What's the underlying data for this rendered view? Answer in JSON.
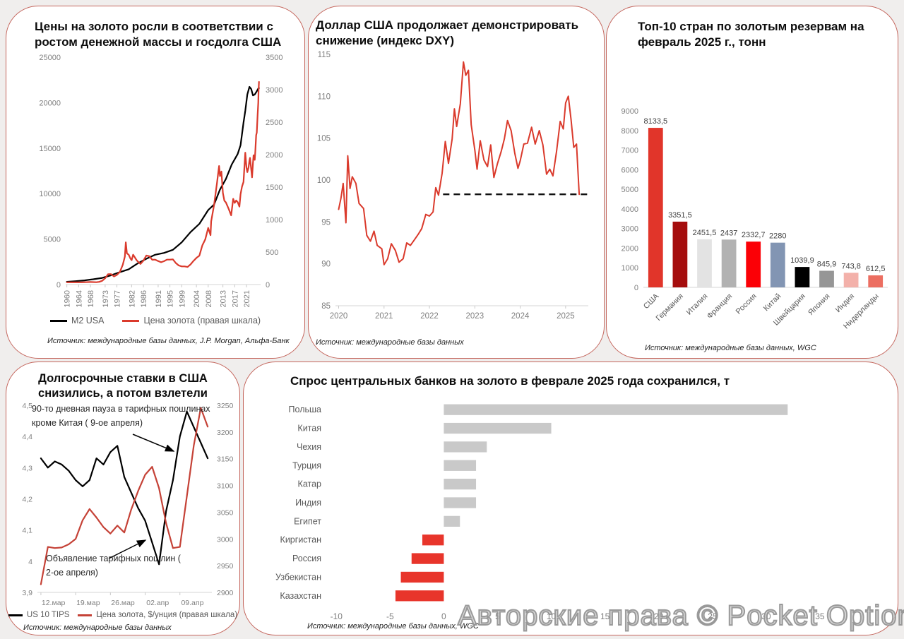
{
  "page": {
    "watermark": "Авторские права © Pocket Option"
  },
  "chart_data": [
    {
      "type": "line",
      "title": "Цены на золото росли в соответствии с ростом денежной массы и госдолга США",
      "source": "Источник: международные базы данных, J.P. Morgan, Альфа-Банк",
      "xlim": [
        1959.6,
        2025.8
      ],
      "x_ticks": [
        1960,
        1964,
        1968,
        1973,
        1977,
        1982,
        1986,
        1991,
        1995,
        1999,
        2004,
        2008,
        2013,
        2017,
        2021
      ],
      "x_tick_labels": [
        "1960",
        "1964",
        "1968",
        "1973",
        "1977",
        "1982",
        "1986",
        "1991",
        "1995",
        "1999",
        "2004",
        "2008",
        "2013",
        "2017",
        "2021"
      ],
      "left_axis": {
        "min": 0,
        "max": 25000,
        "step": 5000
      },
      "right_axis": {
        "min": 0,
        "max": 3500,
        "step": 500
      },
      "legend_position": "bottom",
      "series": [
        {
          "name": "M2 USA",
          "color": "#000000",
          "axis": "left",
          "x": [
            1960,
            1963,
            1966,
            1969,
            1972,
            1975,
            1978,
            1981,
            1984,
            1987,
            1990,
            1993,
            1996,
            1999,
            2002,
            2005,
            2008,
            2010,
            2012,
            2014,
            2016,
            2018,
            2019,
            2020,
            2020.6,
            2021.3,
            2022,
            2022.6,
            2023.2,
            2023.8,
            2024.4,
            2025,
            2025.25
          ],
          "y": [
            300,
            370,
            460,
            580,
            730,
            1020,
            1370,
            1680,
            2310,
            2830,
            3280,
            3480,
            3820,
            4640,
            5770,
            6680,
            8190,
            8800,
            10450,
            11600,
            13200,
            14350,
            15320,
            17800,
            19100,
            20900,
            21740,
            21500,
            20800,
            20900,
            21200,
            21550,
            21600
          ]
        },
        {
          "name": "Цена золота (правая шкала)",
          "color": "#da3a2c",
          "axis": "right",
          "x": [
            1960,
            1965,
            1968,
            1970,
            1971,
            1972,
            1973,
            1974,
            1975,
            1976,
            1977,
            1978,
            1979,
            1979.7,
            1980,
            1980.4,
            1981,
            1981.6,
            1982,
            1982.5,
            1983,
            1983.6,
            1984,
            1985,
            1986,
            1987,
            1988,
            1989,
            1990,
            1991,
            1992,
            1993,
            1994,
            1995,
            1996,
            1997,
            1998,
            1999,
            2000,
            2001,
            2002,
            2003,
            2004,
            2005,
            2006,
            2007,
            2008,
            2008.8,
            2009,
            2010,
            2011,
            2011.7,
            2012,
            2012.5,
            2013,
            2013.5,
            2014,
            2015,
            2015.8,
            2016.5,
            2017,
            2017.5,
            2018,
            2018.6,
            2019,
            2019.5,
            2020,
            2020.6,
            2021,
            2021.3,
            2021.7,
            2022,
            2022.2,
            2022.7,
            2022.9,
            2023.2,
            2023.4,
            2023.8,
            2024,
            2024.3,
            2024.5,
            2024.8,
            2025,
            2025.1,
            2025.25
          ],
          "y": [
            35,
            35,
            39,
            36,
            41,
            58,
            97,
            159,
            161,
            125,
            148,
            193,
            306,
            430,
            650,
            480,
            460,
            400,
            376,
            460,
            424,
            380,
            360,
            317,
            368,
            447,
            437,
            381,
            384,
            362,
            344,
            360,
            384,
            384,
            388,
            331,
            294,
            279,
            279,
            271,
            310,
            363,
            410,
            445,
            603,
            695,
            872,
            760,
            972,
            1225,
            1570,
            1825,
            1670,
            1740,
            1410,
            1290,
            1265,
            1160,
            1065,
            1320,
            1257,
            1295,
            1270,
            1200,
            1390,
            1510,
            1580,
            2030,
            1800,
            1730,
            1800,
            1910,
            1950,
            1730,
            1650,
            1870,
            1990,
            1920,
            2050,
            2300,
            2340,
            2620,
            2800,
            2980,
            3120
          ]
        }
      ]
    },
    {
      "type": "line",
      "title": "Доллар США продолжает демонстрировать снижение (индекс DXY)",
      "source": "Источник: международные базы данных",
      "xlim": [
        2019.93,
        2025.5
      ],
      "x_ticks": [
        2020,
        2021,
        2022,
        2023,
        2024,
        2025
      ],
      "x_tick_labels": [
        "2020",
        "2021",
        "2022",
        "2023",
        "2024",
        "2025"
      ],
      "left_axis": {
        "min": 85,
        "max": 115,
        "step": 5
      },
      "dashed_line": {
        "y": 98.3,
        "x1": 2022.3,
        "x2": 2025.48,
        "color": "#111111"
      },
      "series": [
        {
          "name": "DXY",
          "color": "#da3a2c",
          "axis": "left",
          "x": [
            2020.0,
            2020.05,
            2020.1,
            2020.16,
            2020.2,
            2020.25,
            2020.3,
            2020.38,
            2020.45,
            2020.55,
            2020.62,
            2020.7,
            2020.78,
            2020.85,
            2020.95,
            2021.0,
            2021.08,
            2021.16,
            2021.25,
            2021.33,
            2021.42,
            2021.5,
            2021.58,
            2021.66,
            2021.75,
            2021.83,
            2021.92,
            2022.0,
            2022.08,
            2022.14,
            2022.2,
            2022.28,
            2022.35,
            2022.42,
            2022.5,
            2022.55,
            2022.6,
            2022.68,
            2022.75,
            2022.8,
            2022.86,
            2022.92,
            2023.0,
            2023.05,
            2023.12,
            2023.2,
            2023.28,
            2023.35,
            2023.42,
            2023.5,
            2023.58,
            2023.65,
            2023.72,
            2023.8,
            2023.88,
            2023.95,
            2024.0,
            2024.08,
            2024.16,
            2024.25,
            2024.33,
            2024.42,
            2024.5,
            2024.58,
            2024.65,
            2024.72,
            2024.8,
            2024.88,
            2024.95,
            2025.0,
            2025.06,
            2025.12,
            2025.18,
            2025.24,
            2025.3
          ],
          "y": [
            96.5,
            97.8,
            99.6,
            94.9,
            102.9,
            99.0,
            100.4,
            99.6,
            97.2,
            96.6,
            93.4,
            92.7,
            93.9,
            92.2,
            91.8,
            89.9,
            90.6,
            92.4,
            91.6,
            90.2,
            90.6,
            92.5,
            92.2,
            92.8,
            93.5,
            94.2,
            95.9,
            95.7,
            96.2,
            99.1,
            98.2,
            100.8,
            104.6,
            102.0,
            104.9,
            108.5,
            106.4,
            109.1,
            114.1,
            112.5,
            113.1,
            106.6,
            103.6,
            101.3,
            104.7,
            102.4,
            101.6,
            104.2,
            100.3,
            102.0,
            103.4,
            104.9,
            107.1,
            105.9,
            103.2,
            101.4,
            102.3,
            104.3,
            104.4,
            106.3,
            104.3,
            105.9,
            104.2,
            100.7,
            101.3,
            100.5,
            103.4,
            107.0,
            106.1,
            109.2,
            110.0,
            107.2,
            103.9,
            104.3,
            98.3
          ]
        }
      ]
    },
    {
      "type": "bar",
      "title": "Топ-10 стран по золотым резервам на февраль 2025 г., тонн",
      "source": "Источник: международные базы данных, WGC",
      "categories": [
        "США",
        "Германия",
        "Италия",
        "Франция",
        "Россия",
        "Китай",
        "Швейцария",
        "Япония",
        "Индия",
        "Нидерланды"
      ],
      "values": [
        8133.5,
        3351.5,
        2451.5,
        2437,
        2332.7,
        2280,
        1039.9,
        845.9,
        743.8,
        612.5
      ],
      "value_labels": [
        "8133,5",
        "3351,5",
        "2451,5",
        "2437",
        "2332,7",
        "2280",
        "1039,9",
        "845,9",
        "743,8",
        "612,5"
      ],
      "colors": [
        "#e1352a",
        "#a50d0d",
        "#e3e3e3",
        "#b2b2b2",
        "#fb0006",
        "#8295b3",
        "#000000",
        "#969696",
        "#f3b1aa",
        "#ec6e61"
      ],
      "left_axis": {
        "min": 0,
        "max": 9000,
        "step": 1000
      }
    },
    {
      "type": "line",
      "title": "Долгосрочные ставки в США снизились, а потом взлетели",
      "source": "Источник: международные базы данных",
      "annotations": [
        "90-то дневная пауза в тарифных пошлинах кроме Китая ( 9-ое апреля)",
        "Объявление тарифных пошлин ( 2-ое апреля)"
      ],
      "xlim": [
        -0.5,
        24.6
      ],
      "x_ticks": [
        0,
        5,
        10,
        15,
        20
      ],
      "x_tick_labels": [
        "12.мар",
        "19.мар",
        "26.мар",
        "02.апр",
        "09.апр"
      ],
      "left_axis": {
        "min": 3.9,
        "max": 4.5,
        "step": 0.1
      },
      "right_axis": {
        "min": 2900,
        "max": 3250,
        "step": 50
      },
      "series": [
        {
          "name": "US 10 TIPS",
          "color": "#000000",
          "axis": "left",
          "x": [
            0,
            1,
            2,
            3,
            4,
            5,
            6,
            7,
            8,
            9,
            10,
            11,
            12,
            13,
            14,
            15,
            16,
            17,
            18,
            19,
            20,
            21,
            22,
            23,
            24
          ],
          "y": [
            4.33,
            4.3,
            4.32,
            4.31,
            4.29,
            4.26,
            4.24,
            4.26,
            4.33,
            4.31,
            4.35,
            4.37,
            4.27,
            4.22,
            4.17,
            4.13,
            4.06,
            3.99,
            4.16,
            4.26,
            4.4,
            4.48,
            4.43,
            4.38,
            4.33
          ]
        },
        {
          "name": "Цена золота, $/унция (правая шкала)",
          "color": "#c54237",
          "axis": "right",
          "x": [
            0,
            1,
            2,
            3,
            4,
            5,
            6,
            7,
            8,
            9,
            10,
            11,
            12,
            13,
            14,
            15,
            16,
            17,
            18,
            19,
            20,
            21,
            22,
            23,
            24
          ],
          "y": [
            2915,
            2985,
            2983,
            2984,
            2990,
            3000,
            3035,
            3056,
            3040,
            3022,
            3010,
            3025,
            3012,
            3055,
            3090,
            3120,
            3135,
            3095,
            3030,
            2983,
            2985,
            3080,
            3175,
            3245,
            3210
          ]
        }
      ]
    },
    {
      "type": "bar_h",
      "title": "Спрос центральных банков на золото в феврале 2025 года сохранился, т",
      "source": "Источник: международные базы данных, WGC",
      "categories": [
        "Польша",
        "Китая",
        "Чехия",
        "Турция",
        "Катар",
        "Индия",
        "Египет",
        "Киргистан",
        "Россия",
        "Узбекистан",
        "Казахстан"
      ],
      "values": [
        32,
        10,
        4,
        3,
        3,
        3,
        1.5,
        -2,
        -3,
        -4,
        -4.5
      ],
      "x_ticks": [
        -10,
        -5,
        0,
        5,
        10,
        15,
        20,
        25,
        30,
        35
      ],
      "xlim": [
        -13.5,
        40
      ],
      "positive_color": "#c9c9c9",
      "negative_color": "#e8352b"
    }
  ]
}
